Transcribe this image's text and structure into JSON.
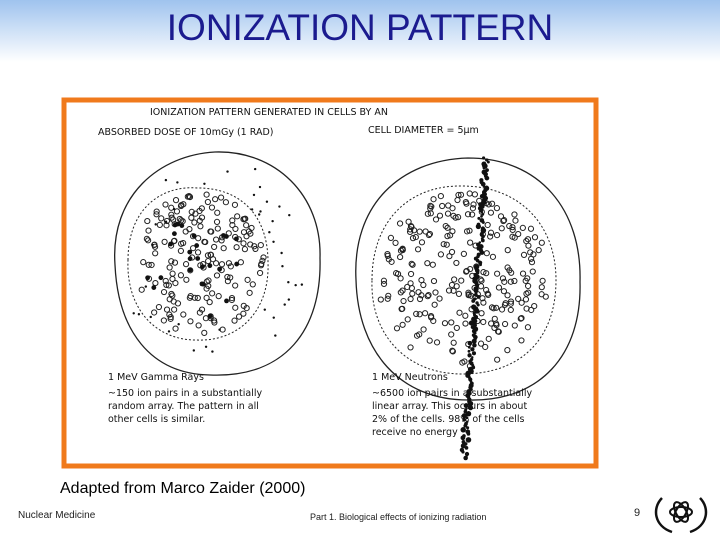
{
  "header": {
    "title": "IONIZATION PATTERN"
  },
  "figure": {
    "heading": "IONIZATION PATTERN GENERATED IN CELLS BY AN",
    "dose": "ABSORBED DOSE OF 10mGy (1 RAD)",
    "cell_diameter": "CELL DIAMETER = 5μm",
    "left": {
      "label": "1 MeV Gamma Rays",
      "note": [
        "~150 ion pairs in a substantially",
        "random array. The pattern in all",
        "other cells is similar."
      ]
    },
    "right": {
      "label": "1 MeV Neutrons",
      "note": [
        "~6500 ion pairs in a substantially",
        "linear array. This occurs in about",
        "2% of the cells. 98% of the cells",
        "receive no energy"
      ]
    }
  },
  "caption": "Adapted from Marco Zaider (2000)",
  "footer": {
    "left": "Nuclear Medicine",
    "center": "Part 1. Biological effects of ionizing radiation",
    "page_number": 9
  }
}
